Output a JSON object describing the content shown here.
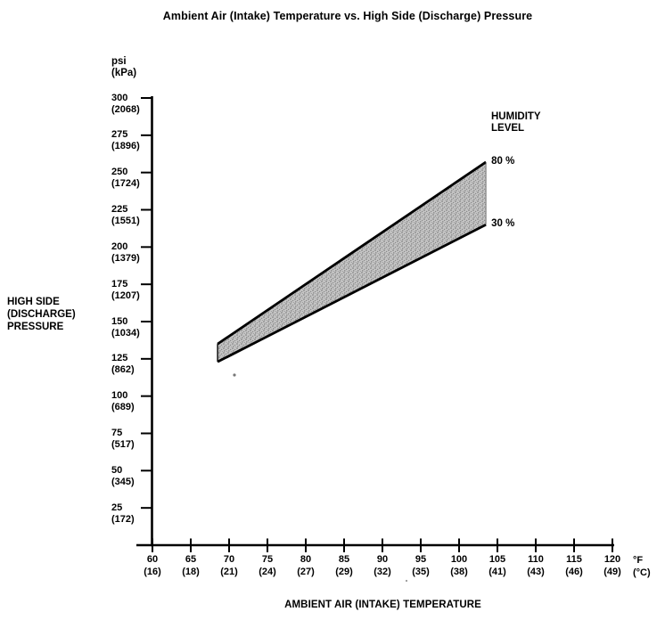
{
  "chart_data": {
    "type": "area",
    "title": "Ambient Air (Intake) Temperature vs. High Side (Discharge) Pressure",
    "xlabel": "AMBIENT AIR (INTAKE) TEMPERATURE",
    "ylabel": "HIGH SIDE\n(DISCHARGE)\nPRESSURE",
    "y_axis_unit": "psi\n(kPa)",
    "x_axis_unit": "°F\n(°C)",
    "xlim": [
      60,
      120
    ],
    "ylim": [
      0,
      300
    ],
    "grid": false,
    "legend_title": "HUMIDITY\nLEVEL",
    "x_ticks": [
      {
        "f": "60",
        "c": "(16)"
      },
      {
        "f": "65",
        "c": "(18)"
      },
      {
        "f": "70",
        "c": "(21)"
      },
      {
        "f": "75",
        "c": "(24)"
      },
      {
        "f": "80",
        "c": "(27)"
      },
      {
        "f": "85",
        "c": "(29)"
      },
      {
        "f": "90",
        "c": "(32)"
      },
      {
        "f": "95",
        "c": "(35)"
      },
      {
        "f": "100",
        "c": "(38)"
      },
      {
        "f": "105",
        "c": "(41)"
      },
      {
        "f": "110",
        "c": "(43)"
      },
      {
        "f": "115",
        "c": "(46)"
      },
      {
        "f": "120",
        "c": "(49)"
      }
    ],
    "y_ticks": [
      {
        "psi": "300",
        "kpa": "(2068)"
      },
      {
        "psi": "275",
        "kpa": "(1896)"
      },
      {
        "psi": "250",
        "kpa": "(1724)"
      },
      {
        "psi": "225",
        "kpa": "(1551)"
      },
      {
        "psi": "200",
        "kpa": "(1379)"
      },
      {
        "psi": "175",
        "kpa": "(1207)"
      },
      {
        "psi": "150",
        "kpa": "(1034)"
      },
      {
        "psi": "125",
        "kpa": "(862)"
      },
      {
        "psi": "100",
        "kpa": "(689)"
      },
      {
        "psi": "75",
        "kpa": "(517)"
      },
      {
        "psi": "50",
        "kpa": "(345)"
      },
      {
        "psi": "25",
        "kpa": "(172)"
      }
    ],
    "series": [
      {
        "name": "80 %",
        "humidity_percent": 80,
        "points": [
          [
            68.5,
            135
          ],
          [
            103.5,
            257
          ]
        ]
      },
      {
        "name": "30 %",
        "humidity_percent": 30,
        "points": [
          [
            68.5,
            123
          ],
          [
            103.5,
            215
          ]
        ]
      }
    ],
    "band_fill_color": "#bdbdbd",
    "line_color": "#000000"
  }
}
